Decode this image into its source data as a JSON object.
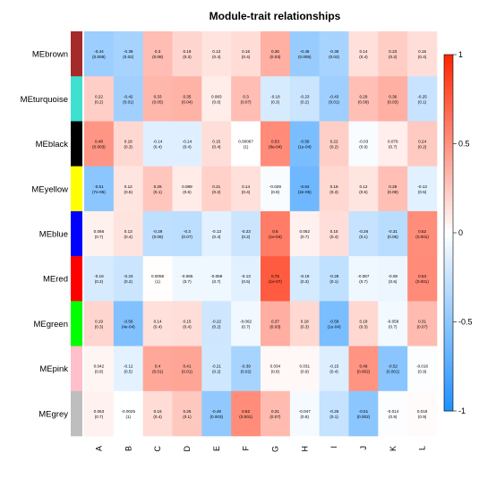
{
  "chart_data": {
    "type": "heatmap",
    "title": "Module-trait relationships",
    "rows": [
      "MEbrown",
      "MEturquoise",
      "MEblack",
      "MEyellow",
      "MEblue",
      "MEred",
      "MEgreen",
      "MEpink",
      "MEgrey"
    ],
    "row_colors": [
      "#a52a2a",
      "#40e0d0",
      "#000000",
      "#ffff00",
      "#0000ff",
      "#ff0000",
      "#00ff00",
      "#ffc0cb",
      "#bebebe"
    ],
    "columns": [
      "A",
      "B",
      "C",
      "D",
      "E",
      "F",
      "G",
      "H",
      "I",
      "J",
      "K",
      "L"
    ],
    "values": [
      [
        -0.44,
        -0.39,
        0.3,
        0.19,
        0.13,
        0.16,
        0.36,
        -0.46,
        -0.39,
        0.14,
        0.23,
        0.15
      ],
      [
        0.22,
        -0.42,
        0.33,
        0.35,
        0.083,
        0.3,
        -0.18,
        -0.23,
        -0.43,
        0.29,
        0.36,
        -0.25
      ],
      [
        0.48,
        0.18,
        -0.14,
        -0.14,
        0.15,
        0.00067,
        0.53,
        -0.59,
        0.22,
        -0.03,
        0.076,
        0.24
      ],
      [
        -0.51,
        0.12,
        0.26,
        0.089,
        0.21,
        0.14,
        -0.029,
        -0.64,
        0.18,
        0.12,
        0.29,
        -0.13
      ],
      [
        0.066,
        0.13,
        -0.29,
        -0.3,
        -0.13,
        -0.23,
        0.6,
        0.062,
        0.15,
        -0.26,
        -0.31,
        0.52
      ],
      [
        -0.18,
        -0.23,
        0.0059,
        -0.065,
        -0.069,
        -0.13,
        0.75,
        -0.19,
        -0.28,
        -0.067,
        -0.08,
        0.53
      ],
      [
        0.19,
        -0.56,
        0.14,
        0.15,
        -0.22,
        -0.062,
        0.37,
        0.18,
        -0.59,
        0.18,
        -0.058,
        0.31
      ],
      [
        0.042,
        -0.12,
        0.4,
        0.41,
        -0.21,
        -0.39,
        0.034,
        0.031,
        -0.15,
        0.49,
        -0.52,
        -0.016
      ],
      [
        0.063,
        -0.0025,
        0.16,
        0.25,
        -0.49,
        0.52,
        0.31,
        -0.047,
        -0.26,
        -0.51,
        -0.014,
        0.018
      ]
    ],
    "pvalues": [
      [
        "0.008",
        "0.02",
        "0.08",
        "0.3",
        "0.4",
        "0.4",
        "0.03",
        "0.005",
        "0.02",
        "0.4",
        "0.2",
        "0.4"
      ],
      [
        "0.2",
        "0.01",
        "0.05",
        "0.04",
        "0.6",
        "0.07",
        "0.3",
        "0.2",
        "0.01",
        "0.09",
        "0.03",
        "0.1"
      ],
      [
        "0.003",
        "0.3",
        "0.4",
        "0.4",
        "0.4",
        "1",
        "8e-04",
        "1e-04",
        "0.2",
        "0.9",
        "0.7",
        "0.2"
      ],
      [
        "7e-05",
        "0.5",
        "0.1",
        "0.6",
        "0.2",
        "0.4",
        "0.9",
        "2e-05",
        "0.3",
        "0.5",
        "0.09",
        "0.5"
      ],
      [
        "0.7",
        "0.4",
        "0.08",
        "0.07",
        "0.4",
        "0.2",
        "1e-04",
        "0.7",
        "0.4",
        "0.1",
        "0.06",
        "0.001"
      ],
      [
        "0.3",
        "0.2",
        "1",
        "0.7",
        "0.7",
        "0.5",
        "1e-07",
        "0.3",
        "0.1",
        "0.7",
        "0.6",
        "0.001"
      ],
      [
        "0.3",
        "4e-04",
        "0.4",
        "0.4",
        "0.2",
        "0.7",
        "0.03",
        "0.3",
        "1e-04",
        "0.3",
        "0.7",
        "0.07"
      ],
      [
        "0.8",
        "0.5",
        "0.01",
        "0.01",
        "0.2",
        "0.02",
        "0.8",
        "0.9",
        "0.4",
        "0.002",
        "0.001",
        "0.9"
      ],
      [
        "0.7",
        "1",
        "0.4",
        "0.1",
        "0.003",
        "0.001",
        "0.07",
        "0.8",
        "0.1",
        "0.002",
        "0.9",
        "0.9"
      ]
    ],
    "value_labels": [
      [
        "-0.44",
        "-0.39",
        "0.3",
        "0.19",
        "0.13",
        "0.16",
        "0.36",
        "-0.46",
        "-0.39",
        "0.14",
        "0.23",
        "0.15"
      ],
      [
        "0.22",
        "-0.42",
        "0.33",
        "0.35",
        "0.083",
        "0.3",
        "-0.18",
        "-0.23",
        "-0.43",
        "0.29",
        "0.36",
        "-0.25"
      ],
      [
        "0.48",
        "0.18",
        "-0.14",
        "-0.14",
        "0.15",
        "0.00067",
        "0.53",
        "-0.59",
        "0.22",
        "-0.03",
        "0.076",
        "0.24"
      ],
      [
        "-0.51",
        "0.12",
        "0.26",
        "0.089",
        "0.21",
        "0.14",
        "-0.029",
        "-0.64",
        "0.18",
        "0.12",
        "0.29",
        "-0.13"
      ],
      [
        "0.066",
        "0.13",
        "-0.29",
        "-0.3",
        "-0.13",
        "-0.23",
        "0.6",
        "0.062",
        "0.15",
        "-0.26",
        "-0.31",
        "0.52"
      ],
      [
        "-0.18",
        "-0.23",
        "0.0059",
        "-0.065",
        "-0.069",
        "-0.13",
        "0.75",
        "-0.19",
        "-0.28",
        "-0.067",
        "-0.08",
        "0.53"
      ],
      [
        "0.19",
        "-0.56",
        "0.14",
        "0.15",
        "-0.22",
        "-0.062",
        "0.37",
        "0.18",
        "-0.59",
        "0.18",
        "-0.058",
        "0.31"
      ],
      [
        "0.042",
        "-0.12",
        "0.4",
        "0.41",
        "-0.21",
        "-0.39",
        "0.034",
        "0.031",
        "-0.15",
        "0.49",
        "-0.52",
        "-0.016"
      ],
      [
        "0.063",
        "-0.0025",
        "0.16",
        "0.25",
        "-0.49",
        "0.52",
        "0.31",
        "-0.047",
        "-0.26",
        "-0.51",
        "-0.014",
        "0.018"
      ]
    ],
    "color_scale": {
      "low": "#1e90ff",
      "mid": "#ffffff",
      "high": "#ff2400",
      "range": [
        -1,
        1
      ]
    },
    "legend": {
      "position": "right",
      "ticks": [
        1,
        0.5,
        0,
        -0.5,
        -1
      ],
      "tick_labels": [
        "1",
        "0.5",
        "0",
        "-0.5",
        "-1"
      ]
    },
    "grid": false
  }
}
